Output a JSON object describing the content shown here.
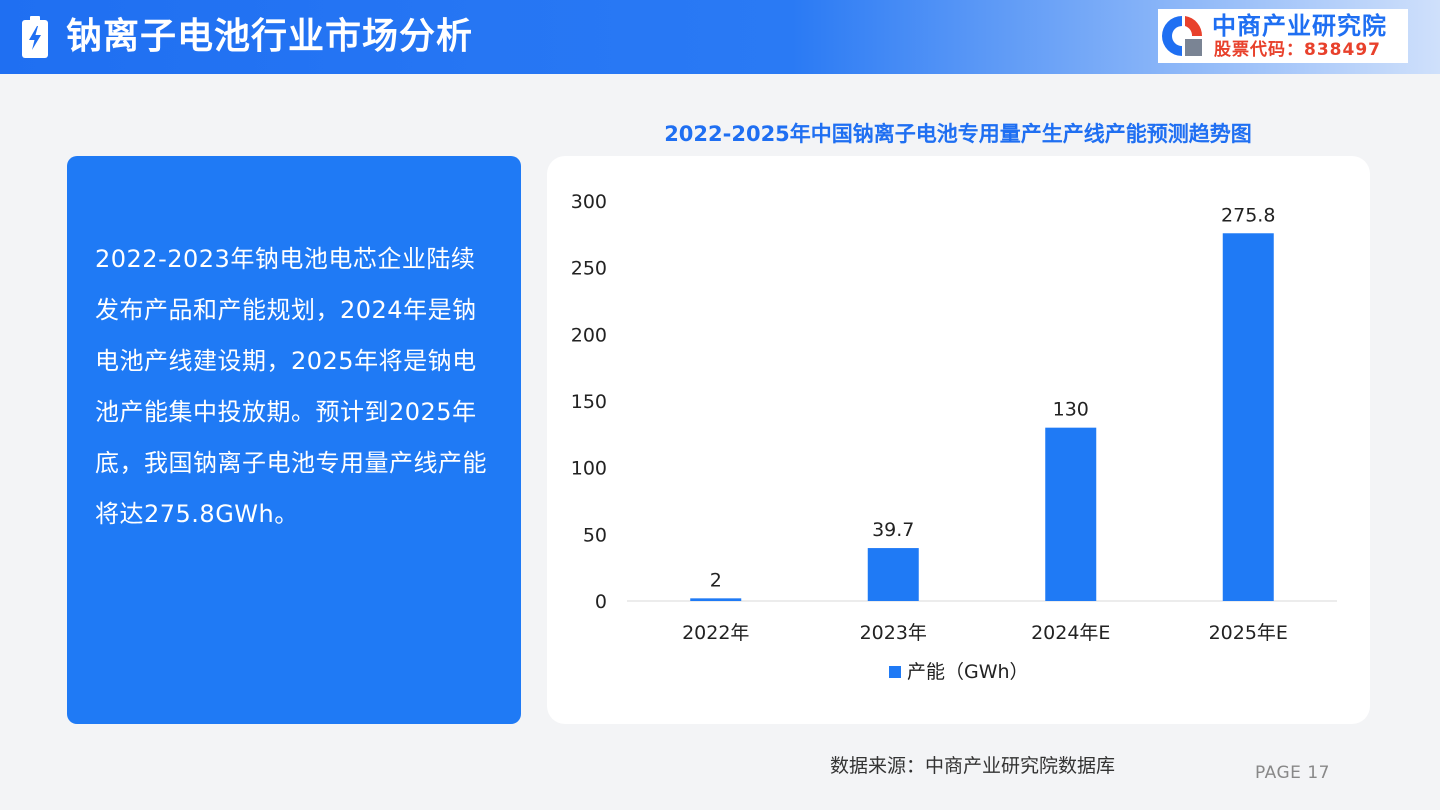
{
  "header": {
    "title": "钠离子电池行业市场分析",
    "logo_name": "中商产业研究院",
    "logo_code": "股票代码：838497"
  },
  "summary_text": "2022-2023年钠电池电芯企业陆续发布产品和产能规划，2024年是钠电池产线建设期，2025年将是钠电池产能集中投放期。预计到2025年底，我国钠离子电池专用量产线产能将达275.8GWh。",
  "chart_data": {
    "type": "bar",
    "title": "2022-2025年中国钠离子电池专用量产生产线产能预测趋势图",
    "categories": [
      "2022年",
      "2023年",
      "2024年E",
      "2025年E"
    ],
    "series": [
      {
        "name": "产能（GWh）",
        "values": [
          2,
          39.7,
          130,
          275.8
        ],
        "color": "#1f7af5"
      }
    ],
    "ylim": [
      0,
      300
    ],
    "yticks": [
      0,
      50,
      100,
      150,
      200,
      250,
      300
    ],
    "grid": false,
    "legend": "bottom"
  },
  "footer": {
    "source": "数据来源：中商产业研究院数据库",
    "page": "PAGE 17"
  },
  "colors": {
    "accent": "#1f6ff2",
    "bar": "#1f7af5",
    "logo_code": "#e8412c"
  }
}
